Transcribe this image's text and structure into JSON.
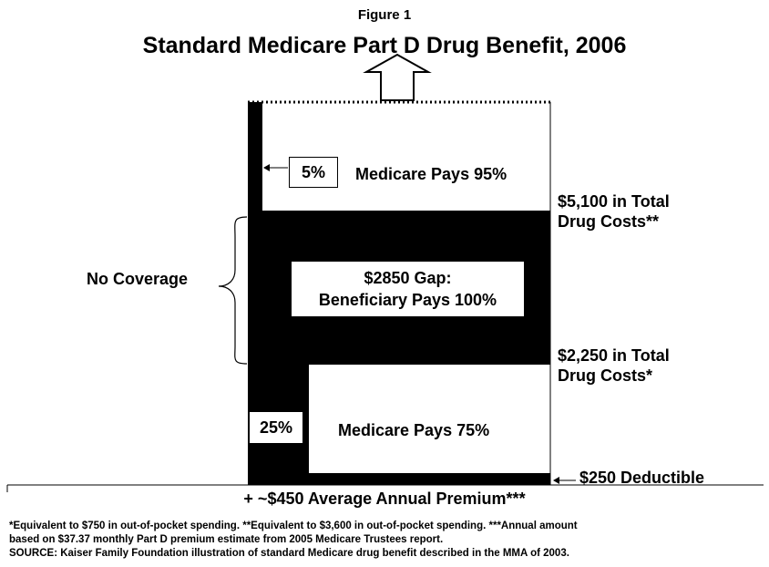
{
  "figure_label": "Figure 1",
  "title": "Standard Medicare Part D Drug Benefit, 2006",
  "segments": {
    "top": {
      "bene_pct": "5%",
      "medicare_label": "Medicare Pays 95%"
    },
    "gap": {
      "line1": "$2850 Gap:",
      "line2": "Beneficiary Pays 100%"
    },
    "bottom": {
      "bene_pct": "25%",
      "medicare_label": "Medicare Pays 75%"
    }
  },
  "thresholds": {
    "upper_line1": "$5,100 in Total",
    "upper_line2": "Drug Costs**",
    "lower_line1": "$2,250 in Total",
    "lower_line2": "Drug Costs*",
    "deductible": "$250 Deductible"
  },
  "no_coverage_label": "No Coverage",
  "premium_label": "+ ~$450 Average Annual Premium***",
  "footnotes": {
    "line1": "*Equivalent to $750 in out-of-pocket spending. **Equivalent to $3,600 in out-of-pocket spending. ***Annual amount",
    "line2": "based on $37.37 monthly Part D premium estimate from 2005 Medicare Trustees report.",
    "line3": "SOURCE:  Kaiser Family Foundation illustration of standard Medicare drug benefit described in the MMA of 2003."
  }
}
